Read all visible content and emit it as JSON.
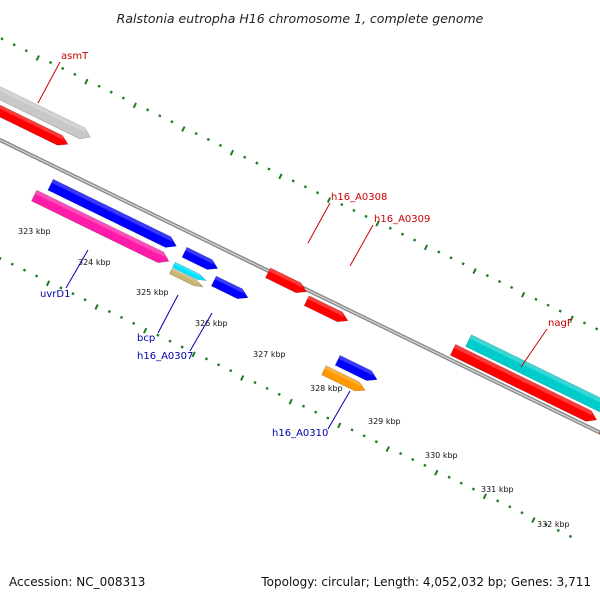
{
  "title": "Ralstonia eutropha H16 chromosome 1, complete genome",
  "accession": "Accession: NC_008313",
  "topology": "Topology: circular; Length: 4,052,032 bp; Genes: 3,711",
  "colors": {
    "backbone": "#8a8a8a",
    "tick": "#1e7a1e",
    "label_red": "#cc0000",
    "label_blue": "#0000aa"
  },
  "tick_labels": [
    "323 kbp",
    "324 kbp",
    "325 kbp",
    "326 kbp",
    "327 kbp",
    "328 kbp",
    "329 kbp",
    "330 kbp",
    "331 kbp",
    "332 kbp"
  ],
  "genes": [
    {
      "label": "asmT",
      "color": "#c8c8c8",
      "label_color": "#cc0000"
    },
    {
      "label": "",
      "color": "#ff0000"
    },
    {
      "label": "",
      "color": "#0000ff"
    },
    {
      "label": "uvrD1",
      "color": "#ff1aa8",
      "label_color": "#0000aa"
    },
    {
      "label": "",
      "color": "#0000ff"
    },
    {
      "label": "bcp",
      "color": "#00e5ff",
      "label_color": "#0000aa"
    },
    {
      "label": "h16_A0307",
      "color": "#c8b46e",
      "label_color": "#0000aa"
    },
    {
      "label": "",
      "color": "#0000ff"
    },
    {
      "label": "h16_A0308",
      "color": "#ff0000",
      "label_color": "#cc0000"
    },
    {
      "label": "h16_A0309",
      "color": "#ff0000",
      "label_color": "#cc0000"
    },
    {
      "label": "",
      "color": "#0000ff"
    },
    {
      "label": "h16_A0310",
      "color": "#ff9900",
      "label_color": "#0000aa"
    },
    {
      "label": "nagF",
      "color": "#00cccc",
      "label_color": "#cc0000"
    },
    {
      "label": "",
      "color": "#ff0000"
    },
    {
      "label": "",
      "color": "#00cccc"
    },
    {
      "label": "",
      "color": "#ff0000"
    }
  ]
}
